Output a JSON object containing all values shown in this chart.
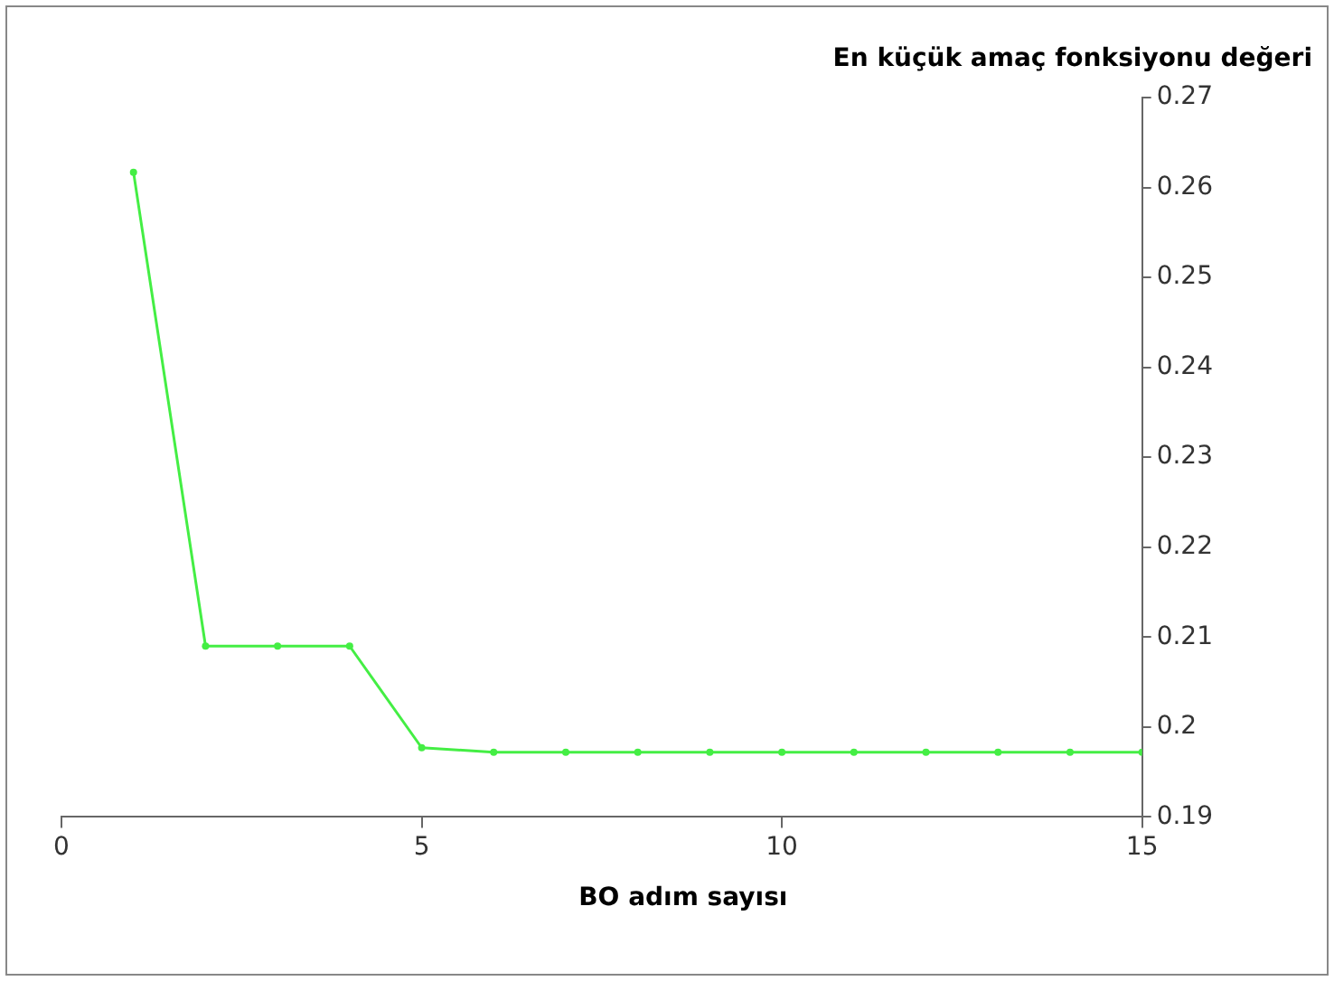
{
  "chart_data": {
    "type": "line",
    "xlabel": "BO adım sayısı",
    "ylabel": "En küçük amaç fonksiyonu değeri",
    "x": [
      1,
      2,
      3,
      4,
      5,
      6,
      7,
      8,
      9,
      10,
      11,
      12,
      13,
      14,
      15
    ],
    "series": [
      {
        "color": "#44ee44",
        "values": [
          0.2617,
          0.209,
          0.209,
          0.209,
          0.1977,
          0.1972,
          0.1972,
          0.1972,
          0.1972,
          0.1972,
          0.1972,
          0.1972,
          0.1972,
          0.1972,
          0.1972
        ]
      }
    ],
    "xlim": [
      0,
      15
    ],
    "xticks": [
      0,
      5,
      10,
      15
    ],
    "ylim": [
      0.19,
      0.27
    ],
    "yticks": [
      0.19,
      0.2,
      0.21,
      0.22,
      0.23,
      0.24,
      0.25,
      0.26,
      0.27
    ],
    "grid": false,
    "legend": false,
    "marker": "circle",
    "line_style": "solid"
  }
}
